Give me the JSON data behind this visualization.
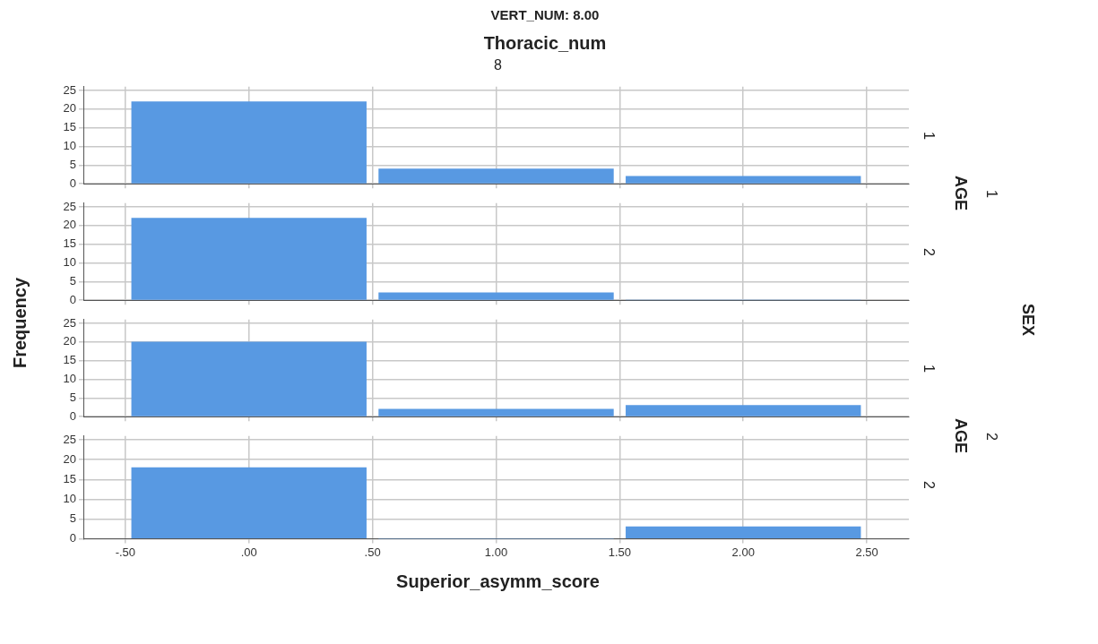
{
  "chart_data": [
    {
      "type": "histogram",
      "title": "VERT_NUM: 8.00",
      "subtitle": "Thoracic_num",
      "annotations": [
        "8",
        "1",
        "1",
        "SEX"
      ],
      "ylabel": "Frequency",
      "y2label": "AGE",
      "bins": [
        -0.5,
        0.5,
        1.5,
        2.5
      ],
      "values": [
        22,
        4,
        2
      ],
      "color": "#5899e2",
      "xlim": [
        -0.67,
        2.67
      ],
      "xticks": [
        -0.5,
        0,
        0.5,
        1,
        1.5,
        2,
        2.5
      ],
      "ylim": [
        0,
        26
      ],
      "yticks": [
        0,
        5,
        10,
        15,
        20,
        25
      ],
      "grid": true,
      "tick_labels": "y"
    },
    {
      "type": "histogram",
      "annotations": [
        "2"
      ],
      "bins": [
        -0.5,
        0.5,
        1.5,
        2.5
      ],
      "values": [
        22,
        2,
        0
      ],
      "color": "#5899e2",
      "xlim": [
        -0.67,
        2.67
      ],
      "xticks": [
        -0.5,
        0,
        0.5,
        1,
        1.5,
        2,
        2.5
      ],
      "ylim": [
        0,
        26
      ],
      "yticks": [
        0,
        5,
        10,
        15,
        20,
        25
      ],
      "grid": true,
      "tick_labels": "y"
    },
    {
      "type": "histogram",
      "annotations": [
        "1",
        "2"
      ],
      "y2label": "AGE",
      "bins": [
        -0.5,
        0.5,
        1.5,
        2.5
      ],
      "values": [
        20,
        2,
        3
      ],
      "color": "#5899e2",
      "xlim": [
        -0.67,
        2.67
      ],
      "xticks": [
        -0.5,
        0,
        0.5,
        1,
        1.5,
        2,
        2.5
      ],
      "ylim": [
        0,
        26
      ],
      "yticks": [
        0,
        5,
        10,
        15,
        20,
        25
      ],
      "grid": true,
      "tick_labels": "y"
    },
    {
      "type": "histogram",
      "annotations": [
        "2"
      ],
      "xlabel": "Superior_asymm_score",
      "bins": [
        -0.5,
        0.5,
        1.5,
        2.5
      ],
      "values": [
        18,
        0,
        3
      ],
      "color": "#5899e2",
      "xlim": [
        -0.67,
        2.67
      ],
      "xticks": [
        {
          "value": -0.5,
          "label": "-.50"
        },
        {
          "value": 0,
          "label": ".00"
        },
        {
          "value": 0.5,
          "label": ".50"
        },
        {
          "value": 1,
          "label": "1.00"
        },
        {
          "value": 1.5,
          "label": "1.50"
        },
        {
          "value": 2,
          "label": "2.00"
        },
        {
          "value": 2.5,
          "label": "2.50"
        }
      ],
      "ylim": [
        0,
        26
      ],
      "yticks": [
        0,
        5,
        10,
        15,
        20,
        25
      ],
      "grid": true
    }
  ]
}
